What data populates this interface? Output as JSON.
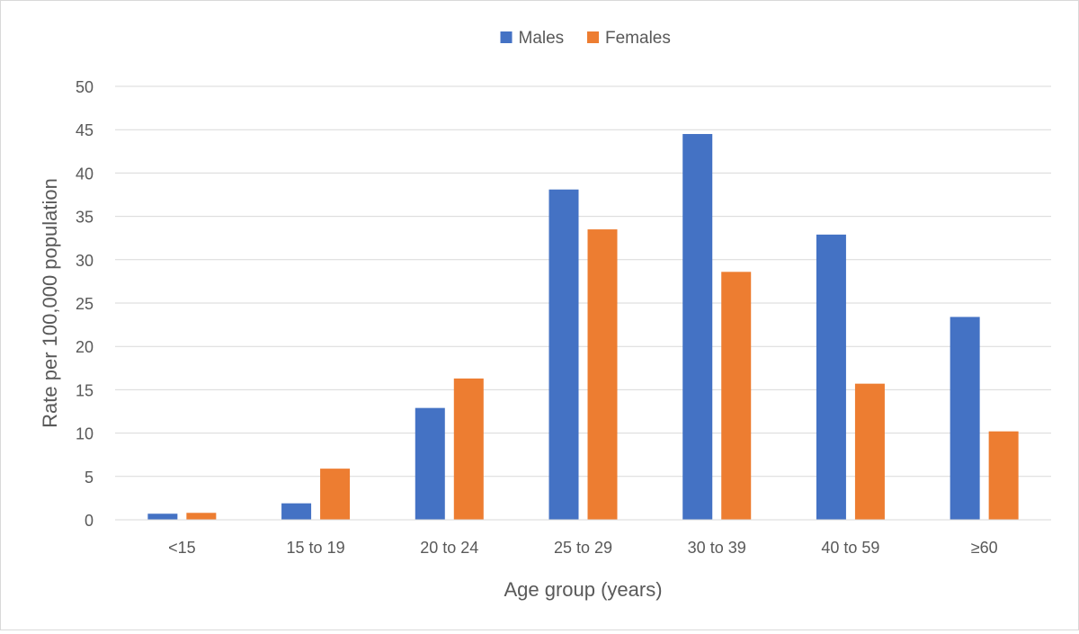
{
  "chart_data": {
    "type": "bar",
    "title": "",
    "xlabel": "Age group (years)",
    "ylabel": "Rate per 100,000 population",
    "categories": [
      "<15",
      "15 to 19",
      "20 to 24",
      "25 to 29",
      "30 to 39",
      "40 to 59",
      "≥60"
    ],
    "series": [
      {
        "name": "Males",
        "color": "#4472c4",
        "values": [
          0.7,
          1.9,
          12.9,
          38.1,
          44.5,
          32.9,
          23.4
        ]
      },
      {
        "name": "Females",
        "color": "#ed7d31",
        "values": [
          0.8,
          5.9,
          16.3,
          33.5,
          28.6,
          15.7,
          10.2
        ]
      }
    ],
    "ylim": [
      0,
      50
    ],
    "yticks": [
      0,
      5,
      10,
      15,
      20,
      25,
      30,
      35,
      40,
      45,
      50
    ],
    "grid": true,
    "legend_position": "top-center"
  }
}
